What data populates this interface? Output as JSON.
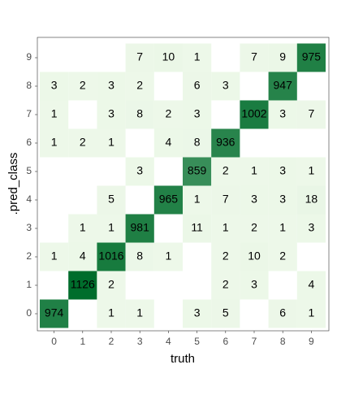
{
  "chart_data": {
    "type": "heatmap",
    "x_label": "truth",
    "y_label": ".pred_class",
    "x": [
      0,
      1,
      2,
      3,
      4,
      5,
      6,
      7,
      8,
      9
    ],
    "y": [
      0,
      1,
      2,
      3,
      4,
      5,
      6,
      7,
      8,
      9
    ],
    "values": [
      [
        974,
        null,
        1,
        1,
        null,
        3,
        5,
        null,
        6,
        1
      ],
      [
        null,
        1126,
        2,
        null,
        null,
        null,
        2,
        3,
        null,
        4
      ],
      [
        1,
        4,
        1016,
        8,
        1,
        null,
        2,
        10,
        2,
        null
      ],
      [
        null,
        1,
        1,
        981,
        null,
        11,
        1,
        2,
        1,
        3
      ],
      [
        null,
        null,
        5,
        null,
        965,
        1,
        7,
        3,
        3,
        18
      ],
      [
        null,
        null,
        null,
        3,
        null,
        859,
        2,
        1,
        3,
        1
      ],
      [
        1,
        2,
        1,
        null,
        4,
        8,
        936,
        null,
        null,
        null
      ],
      [
        1,
        null,
        3,
        8,
        2,
        3,
        null,
        1002,
        3,
        7
      ],
      [
        3,
        2,
        3,
        2,
        null,
        6,
        3,
        null,
        947,
        null
      ],
      [
        null,
        null,
        null,
        7,
        10,
        1,
        null,
        7,
        9,
        975
      ]
    ],
    "color_low": "#edf8e9",
    "color_high": "#006d2c"
  }
}
